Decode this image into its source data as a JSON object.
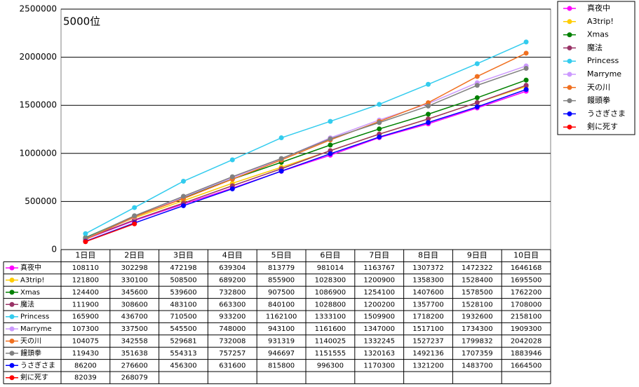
{
  "chart_data": {
    "type": "line",
    "annotation": "5000位",
    "categories": [
      "1日目",
      "2日目",
      "3日目",
      "4日目",
      "5日目",
      "6日目",
      "7日目",
      "8日目",
      "9日目",
      "10日目"
    ],
    "series": [
      {
        "name": "真夜中",
        "color": "#ff00ff",
        "values": [
          108110,
          302298,
          472198,
          639304,
          813779,
          981014,
          1163767,
          1307372,
          1472322,
          1646168
        ]
      },
      {
        "name": "A3trip!",
        "color": "#ffcc00",
        "values": [
          121800,
          330100,
          508500,
          689200,
          855900,
          1028300,
          1200900,
          1358300,
          1528400,
          1695500
        ]
      },
      {
        "name": "Xmas",
        "color": "#008000",
        "values": [
          124400,
          345600,
          539600,
          732800,
          907500,
          1086900,
          1254100,
          1407600,
          1578500,
          1762200
        ]
      },
      {
        "name": "魔法",
        "color": "#993366",
        "values": [
          111900,
          308600,
          483100,
          663300,
          840100,
          1028800,
          1200200,
          1357700,
          1528100,
          1708000
        ]
      },
      {
        "name": "Princess",
        "color": "#33ccee",
        "values": [
          165900,
          436700,
          710500,
          933200,
          1162100,
          1333100,
          1509900,
          1718200,
          1932600,
          2158100
        ]
      },
      {
        "name": "Marryme",
        "color": "#cc99ff",
        "values": [
          107300,
          337500,
          545500,
          748000,
          943100,
          1161600,
          1347000,
          1517100,
          1734300,
          1909300
        ]
      },
      {
        "name": "天の川",
        "color": "#f07020",
        "values": [
          104075,
          342558,
          529681,
          732008,
          931319,
          1140025,
          1332245,
          1527237,
          1799832,
          2042028
        ]
      },
      {
        "name": "饅頭拳",
        "color": "#808080",
        "values": [
          119430,
          351638,
          554313,
          757257,
          946697,
          1151555,
          1320163,
          1492136,
          1707359,
          1883946
        ]
      },
      {
        "name": "うさぎさま",
        "color": "#0000ff",
        "values": [
          86200,
          276600,
          456300,
          631600,
          815800,
          996300,
          1170300,
          1321200,
          1483700,
          1664500
        ]
      },
      {
        "name": "剣に死す",
        "color": "#ff0000",
        "values": [
          82039,
          268079,
          null,
          null,
          null,
          null,
          null,
          null,
          null,
          null
        ]
      }
    ],
    "ylim": [
      0,
      2500000
    ],
    "yticks": [
      0,
      500000,
      1000000,
      1500000,
      2000000,
      2500000
    ],
    "grid": true
  }
}
